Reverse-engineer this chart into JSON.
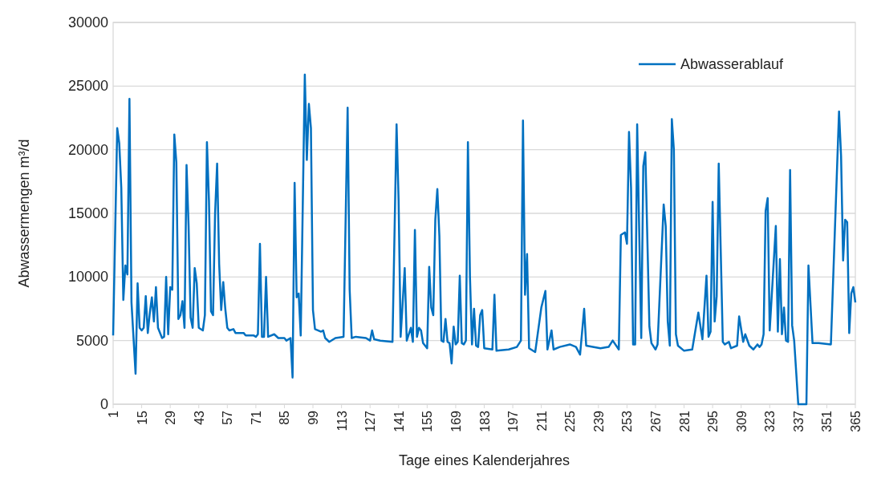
{
  "chart_data": {
    "type": "line",
    "xlabel": "Tage eines Kalenderjahres",
    "ylabel": "Abwassermengen m³/d",
    "xlim": [
      1,
      365
    ],
    "xticks": [
      1,
      15,
      29,
      43,
      57,
      71,
      85,
      99,
      113,
      127,
      141,
      155,
      169,
      183,
      197,
      211,
      225,
      239,
      253,
      267,
      281,
      295,
      309,
      323,
      337,
      351,
      365
    ],
    "ylim": [
      0,
      30000
    ],
    "yticks": [
      0,
      5000,
      10000,
      15000,
      20000,
      25000,
      30000
    ],
    "grid": "y",
    "legend": "top right",
    "line_style": "solid",
    "marker": "none",
    "series": [
      {
        "name": "Abwasserablauf",
        "color": "#0070c0",
        "x": [
          1,
          3,
          4,
          5,
          6,
          7,
          8,
          9,
          10,
          12,
          13,
          14,
          15,
          16,
          17,
          18,
          19,
          20,
          21,
          22,
          23,
          25,
          26,
          27,
          28,
          29,
          30,
          31,
          32,
          33,
          34,
          35,
          36,
          37,
          38,
          39,
          40,
          41,
          42,
          43,
          45,
          46,
          47,
          48,
          49,
          50,
          51,
          52,
          53,
          54,
          55,
          56,
          57,
          58,
          60,
          61,
          65,
          66,
          70,
          71,
          72,
          73,
          74,
          75,
          76,
          77,
          80,
          82,
          85,
          86,
          88,
          89,
          90,
          91,
          92,
          93,
          95,
          96,
          97,
          98,
          99,
          100,
          103,
          104,
          105,
          107,
          110,
          114,
          116,
          117,
          118,
          120,
          125,
          127,
          128,
          129,
          132,
          138,
          140,
          141,
          142,
          144,
          145,
          147,
          148,
          149,
          150,
          151,
          152,
          153,
          155,
          156,
          157,
          158,
          159,
          160,
          161,
          162,
          163,
          164,
          165,
          166,
          167,
          168,
          169,
          170,
          171,
          172,
          173,
          174,
          175,
          176,
          177,
          178,
          179,
          180,
          181,
          182,
          183,
          187,
          188,
          189,
          195,
          199,
          201,
          202,
          203,
          204,
          205,
          208,
          211,
          213,
          214,
          216,
          217,
          220,
          225,
          228,
          230,
          232,
          233,
          240,
          244,
          246,
          249,
          250,
          252,
          253,
          254,
          255,
          256,
          257,
          258,
          260,
          261,
          262,
          264,
          265,
          267,
          268,
          271,
          272,
          273,
          274,
          275,
          276,
          277,
          278,
          281,
          285,
          288,
          290,
          292,
          293,
          294,
          295,
          296,
          297,
          298,
          300,
          301,
          303,
          304,
          307,
          308,
          310,
          311,
          313,
          315,
          317,
          318,
          319,
          320,
          321,
          322,
          323,
          326,
          327,
          328,
          329,
          330,
          331,
          332,
          333,
          334,
          335,
          337,
          341,
          342,
          344,
          347,
          353,
          357,
          358,
          359,
          360,
          361,
          362,
          363,
          364,
          365
        ],
        "values": [
          5400,
          21700,
          20500,
          17000,
          8200,
          10900,
          10200,
          24000,
          8000,
          2400,
          9500,
          6000,
          5800,
          6000,
          8500,
          5600,
          7200,
          8400,
          6500,
          9200,
          6000,
          5200,
          5300,
          10000,
          5500,
          9200,
          9000,
          21200,
          19000,
          6700,
          7000,
          8100,
          6000,
          18800,
          14000,
          6800,
          6000,
          10700,
          9500,
          6000,
          5800,
          7000,
          20600,
          16000,
          7300,
          7000,
          15000,
          18900,
          11000,
          7400,
          9600,
          7500,
          6000,
          5800,
          5900,
          5600,
          5600,
          5400,
          5400,
          5300,
          5500,
          12600,
          5300,
          5300,
          10000,
          5300,
          5500,
          5200,
          5200,
          5000,
          5200,
          2100,
          17400,
          8400,
          8700,
          5400,
          25900,
          19200,
          23600,
          21700,
          7400,
          5900,
          5700,
          5800,
          5200,
          4900,
          5200,
          5300,
          23300,
          9000,
          5200,
          5300,
          5200,
          5000,
          5800,
          5100,
          5000,
          4900,
          22000,
          16000,
          5300,
          10700,
          5000,
          6000,
          4900,
          13700,
          5300,
          6000,
          5800,
          4800,
          4400,
          10800,
          7600,
          7000,
          14500,
          16900,
          13200,
          5000,
          4900,
          6700,
          4900,
          4800,
          3200,
          6100,
          4700,
          4900,
          10100,
          4800,
          4700,
          5000,
          20600,
          10000,
          4700,
          7500,
          4600,
          4500,
          7000,
          7400,
          4400,
          4300,
          8600,
          4200,
          4300,
          4500,
          5000,
          22300,
          8600,
          11800,
          4400,
          4100,
          7600,
          8900,
          4300,
          5800,
          4300,
          4500,
          4700,
          4500,
          3900,
          7500,
          4600,
          4400,
          4500,
          5000,
          4300,
          13300,
          13500,
          12600,
          21400,
          17000,
          4700,
          4700,
          22000,
          5200,
          18700,
          19800,
          6100,
          4800,
          4300,
          4700,
          15700,
          14000,
          6500,
          4600,
          22400,
          20000,
          5500,
          4600,
          4200,
          4300,
          7200,
          5100,
          10100,
          5300,
          5700,
          15900,
          6500,
          8500,
          18900,
          4900,
          4700,
          4900,
          4400,
          4600,
          6900,
          4900,
          5500,
          4600,
          4300,
          4700,
          4500,
          4700,
          5500,
          15200,
          16200,
          5800,
          14000,
          5700,
          11400,
          5500,
          7600,
          5000,
          4900,
          18400,
          6200,
          5000,
          0,
          0,
          10900,
          4800,
          4800,
          4700,
          23000,
          19500,
          11300,
          14500,
          14300,
          5600,
          8700,
          9200,
          8000
        ]
      }
    ]
  }
}
